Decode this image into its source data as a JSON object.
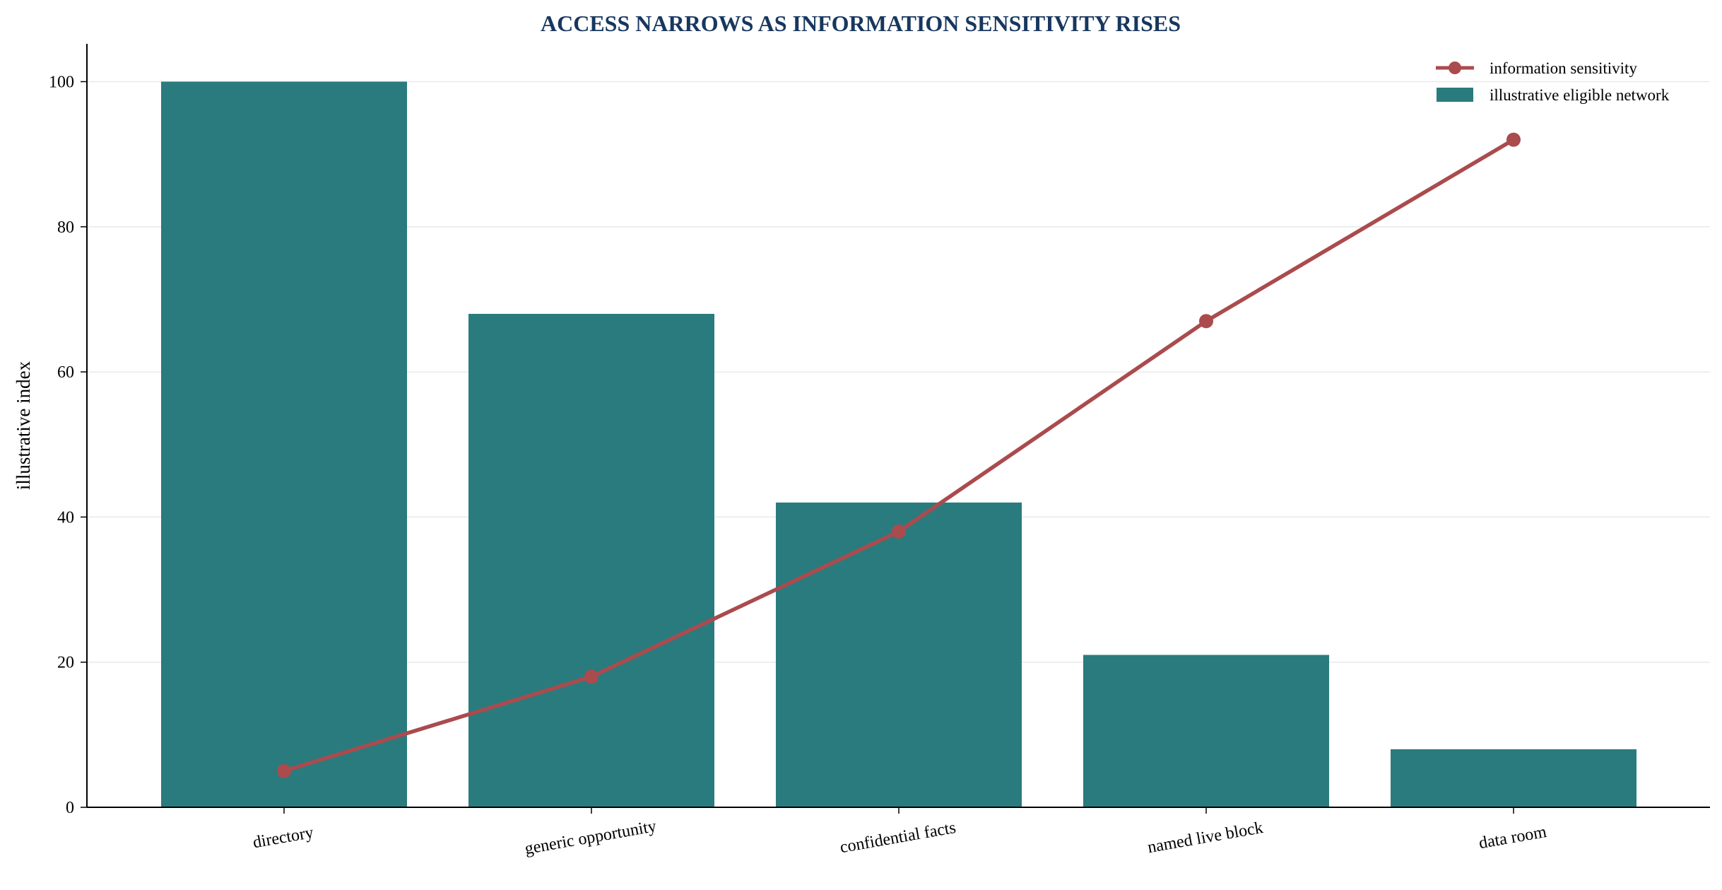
{
  "chart_data": {
    "type": "bar",
    "title": "ACCESS NARROWS AS INFORMATION SENSITIVITY RISES",
    "xlabel": "",
    "ylabel": "illustrative index",
    "categories": [
      "directory",
      "generic opportunity",
      "confidential facts",
      "named live block",
      "data room"
    ],
    "series": [
      {
        "name": "illustrative eligible network",
        "type": "bar",
        "color": "#2a7b7e",
        "values": [
          100,
          68,
          42,
          21,
          8
        ]
      },
      {
        "name": "information sensitivity",
        "type": "line",
        "color": "#aa4b4e",
        "values": [
          5,
          18,
          38,
          67,
          92
        ]
      }
    ],
    "ylim": [
      0,
      105
    ],
    "yticks": [
      0,
      20,
      40,
      60,
      80,
      100
    ],
    "grid": "horizontal",
    "legend_position": "top-right",
    "title_color": "#17375e"
  }
}
